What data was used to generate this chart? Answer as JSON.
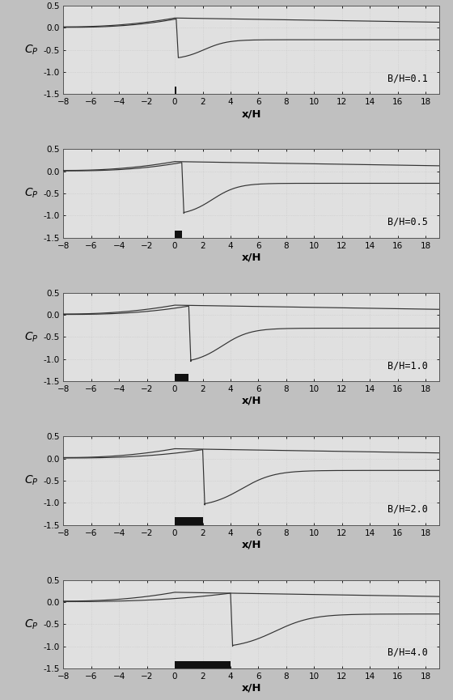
{
  "panels": [
    {
      "label": "B/H=0.1",
      "bh": 0.1,
      "lower_min": -0.72,
      "lower_start": 0.1,
      "lower_asymp": -0.27,
      "tau": 5.0
    },
    {
      "label": "B/H=0.5",
      "bh": 0.5,
      "lower_min": -1.0,
      "lower_start": 0.5,
      "lower_asymp": -0.27,
      "tau": 5.5
    },
    {
      "label": "B/H=1.0",
      "bh": 1.0,
      "lower_min": -1.1,
      "lower_start": 1.0,
      "lower_asymp": -0.3,
      "tau": 6.0
    },
    {
      "label": "B/H=2.0",
      "bh": 2.0,
      "lower_min": -1.1,
      "lower_start": 2.0,
      "lower_asymp": -0.27,
      "tau": 7.0
    },
    {
      "label": "B/H=4.0",
      "bh": 4.0,
      "lower_min": -1.05,
      "lower_start": 4.0,
      "lower_asymp": -0.27,
      "tau": 8.0
    }
  ],
  "xlim": [
    -8,
    19
  ],
  "ylim": [
    -1.5,
    0.5
  ],
  "xticks": [
    -8,
    -6,
    -4,
    -2,
    0,
    2,
    4,
    6,
    8,
    10,
    12,
    14,
    16,
    18
  ],
  "yticks": [
    -1.5,
    -1.0,
    -0.5,
    0.0,
    0.5
  ],
  "xlabel": "x/H",
  "bg_color": "#e0e0e0",
  "line_color": "#333333",
  "obstacle_color": "#111111",
  "grid_color": "#c8c8c8",
  "label_fontsize": 8.5,
  "tick_fontsize": 7.5,
  "ylabel_fontsize": 10,
  "upper_peak": 0.22,
  "upper_left_start": 0.02
}
